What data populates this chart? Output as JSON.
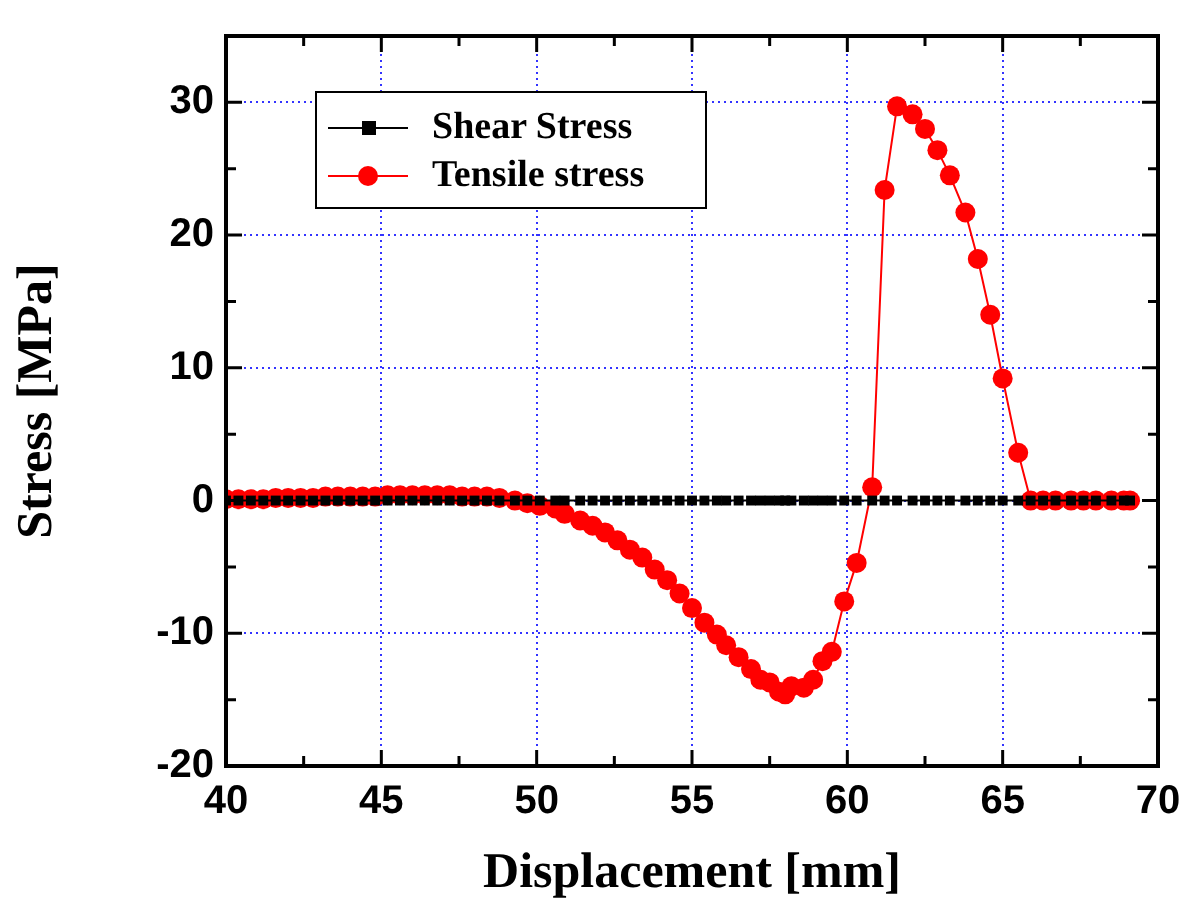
{
  "chart_data": {
    "type": "line",
    "xlabel": "Displacement [mm]",
    "ylabel": "Stress [MPa]",
    "xlim": [
      40,
      70
    ],
    "xticks": [
      40,
      45,
      50,
      55,
      60,
      65,
      70
    ],
    "ylim": [
      -20,
      35
    ],
    "yticks": [
      -20,
      -10,
      0,
      10,
      20,
      30
    ],
    "grid": true,
    "legend": "top left",
    "line_style": "solid",
    "series": [
      {
        "name": "Shear Stress",
        "color": "#000000",
        "marker": "square",
        "x": [
          40.0,
          40.4,
          40.8,
          41.2,
          41.6,
          42.0,
          42.4,
          42.8,
          43.2,
          43.6,
          44.0,
          44.4,
          44.8,
          45.2,
          45.6,
          46.0,
          46.4,
          46.8,
          47.2,
          47.6,
          48.0,
          48.4,
          48.8,
          49.3,
          49.7,
          50.1,
          50.6,
          50.9,
          51.4,
          51.8,
          52.2,
          52.6,
          53.0,
          53.4,
          53.8,
          54.2,
          54.6,
          55.0,
          55.4,
          55.8,
          56.1,
          56.5,
          56.9,
          57.2,
          57.5,
          57.8,
          58.0,
          58.2,
          58.6,
          58.9,
          59.2,
          59.5,
          59.9,
          60.3,
          60.8,
          61.2,
          61.6,
          62.1,
          62.5,
          62.9,
          63.3,
          63.8,
          64.2,
          64.6,
          65.0,
          65.5,
          65.9,
          66.3,
          66.7,
          67.2,
          67.6,
          68.0,
          68.5,
          68.9,
          69.1
        ],
        "values": [
          0,
          0,
          0,
          0,
          0,
          0,
          0,
          0,
          0,
          0,
          0,
          0,
          0,
          0,
          0,
          0,
          0,
          0,
          0,
          0,
          0,
          0,
          0,
          0,
          0,
          0,
          0,
          0,
          0,
          0,
          0,
          0,
          0,
          0,
          0,
          0,
          0,
          0,
          0,
          0,
          0,
          0,
          0,
          0,
          0,
          0,
          0,
          0,
          0,
          0,
          0,
          0,
          0,
          0,
          0,
          0,
          0,
          0,
          0,
          0,
          0,
          0,
          0,
          0,
          0,
          0,
          0,
          0,
          0,
          0,
          0,
          0,
          0,
          0,
          0
        ]
      },
      {
        "name": "Tensile stress",
        "color": "#ff0000",
        "marker": "circle",
        "x": [
          40.0,
          40.4,
          40.8,
          41.2,
          41.6,
          42.0,
          42.4,
          42.8,
          43.2,
          43.6,
          44.0,
          44.4,
          44.8,
          45.2,
          45.6,
          46.0,
          46.4,
          46.8,
          47.2,
          47.6,
          48.0,
          48.4,
          48.8,
          49.3,
          49.7,
          50.1,
          50.6,
          50.9,
          51.4,
          51.8,
          52.2,
          52.6,
          53.0,
          53.4,
          53.8,
          54.2,
          54.6,
          55.0,
          55.4,
          55.8,
          56.1,
          56.5,
          56.9,
          57.2,
          57.5,
          57.8,
          58.0,
          58.2,
          58.6,
          58.9,
          59.2,
          59.5,
          59.9,
          60.3,
          60.8,
          61.2,
          61.6,
          62.1,
          62.5,
          62.9,
          63.3,
          63.8,
          64.2,
          64.6,
          65.0,
          65.5,
          65.9,
          66.3,
          66.7,
          67.2,
          67.6,
          68.0,
          68.5,
          68.9,
          69.1
        ],
        "values": [
          0.1,
          0.1,
          0.1,
          0.1,
          0.2,
          0.2,
          0.2,
          0.2,
          0.3,
          0.3,
          0.3,
          0.3,
          0.3,
          0.4,
          0.4,
          0.4,
          0.4,
          0.4,
          0.4,
          0.3,
          0.3,
          0.3,
          0.2,
          0,
          -0.2,
          -0.4,
          -0.6,
          -1.0,
          -1.5,
          -1.9,
          -2.4,
          -3.0,
          -3.7,
          -4.3,
          -5.2,
          -6.0,
          -7.0,
          -8.1,
          -9.2,
          -10.1,
          -10.9,
          -11.8,
          -12.7,
          -13.5,
          -13.7,
          -14.4,
          -14.6,
          -14.0,
          -14.1,
          -13.5,
          -12.1,
          -11.4,
          -7.6,
          -4.7,
          1.0,
          23.4,
          29.7,
          29.1,
          28.0,
          26.4,
          24.5,
          21.7,
          18.2,
          14.0,
          9.2,
          3.6,
          0,
          0,
          0,
          0,
          0,
          0,
          0,
          0,
          0
        ]
      }
    ]
  }
}
